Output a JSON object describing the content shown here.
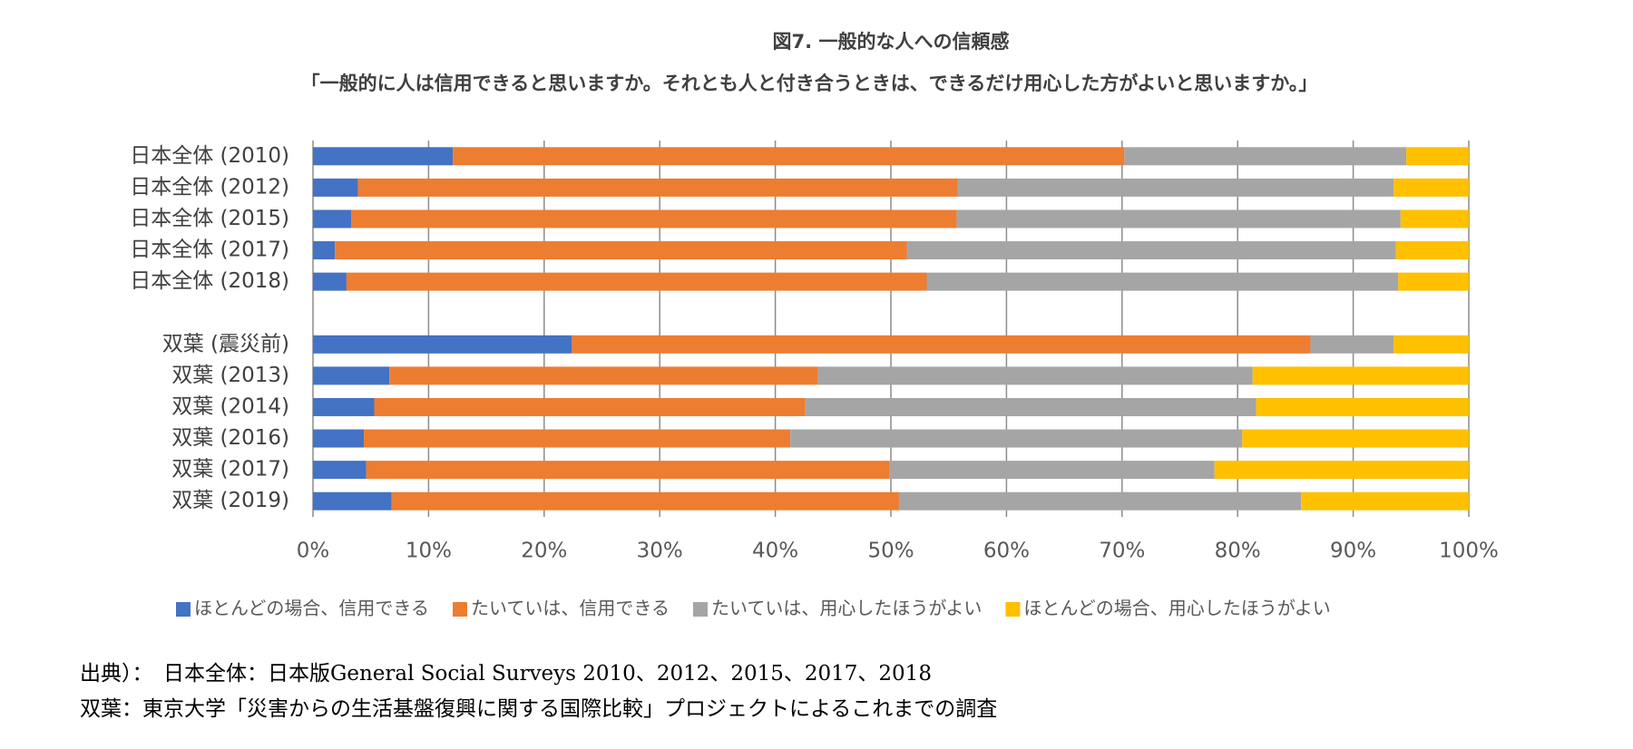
{
  "chart_data": {
    "type": "stacked-bar-horizontal",
    "title": "図7. 一般的な人への信頼感",
    "subtitle": "「一般的に人は信用できると思いますか。それとも人と付き合うときは、できるだけ用心した方がよいと思いますか。」",
    "categories": [
      "日本全体 (2010)",
      "日本全体 (2012)",
      "日本全体 (2015)",
      "日本全体 (2017)",
      "日本全体 (2018)",
      null,
      "双葉 (震災前)",
      "双葉 (2013)",
      "双葉 (2014)",
      "双葉 (2016)",
      "双葉 (2017)",
      "双葉 (2019)"
    ],
    "series": [
      {
        "name": "ほとんどの場合、信用できる",
        "color": "#4472c4",
        "values": [
          12.1,
          3.9,
          3.3,
          1.9,
          2.9,
          null,
          22.4,
          6.6,
          5.3,
          4.4,
          4.6,
          6.8
        ]
      },
      {
        "name": "たいていは、信用できる",
        "color": "#ed7d31",
        "values": [
          58.1,
          51.9,
          52.4,
          49.5,
          50.2,
          null,
          63.9,
          37.1,
          37.3,
          36.9,
          45.3,
          43.9
        ]
      },
      {
        "name": "たいていは、用心したほうがよい",
        "color": "#a5a5a5",
        "values": [
          24.4,
          37.7,
          38.4,
          42.3,
          40.8,
          null,
          7.2,
          37.6,
          39.0,
          39.1,
          28.1,
          34.8
        ]
      },
      {
        "name": "ほとんどの場合、用心したほうがよい",
        "color": "#ffc000",
        "values": [
          5.4,
          6.5,
          5.9,
          6.3,
          6.1,
          null,
          6.5,
          18.7,
          18.4,
          19.6,
          22.0,
          14.5
        ]
      }
    ],
    "xlim": [
      0,
      100
    ],
    "xticks": [
      {
        "value": 0,
        "label": "0%"
      },
      {
        "value": 10,
        "label": "10%"
      },
      {
        "value": 20,
        "label": "20%"
      },
      {
        "value": 30,
        "label": "30%"
      },
      {
        "value": 40,
        "label": "40%"
      },
      {
        "value": 50,
        "label": "50%"
      },
      {
        "value": 60,
        "label": "60%"
      },
      {
        "value": 70,
        "label": "70%"
      },
      {
        "value": 80,
        "label": "80%"
      },
      {
        "value": 90,
        "label": "90%"
      },
      {
        "value": 100,
        "label": "100%"
      }
    ],
    "grid": true,
    "legend": "bottom",
    "notes": [
      "出典）：　日本全体：日本版General Social Surveys 2010、2012、2015、2017、2018",
      "双葉：東京大学「災害からの生活基盤復興に関する国際比較」プロジェクトによるこれまでの調査"
    ]
  }
}
